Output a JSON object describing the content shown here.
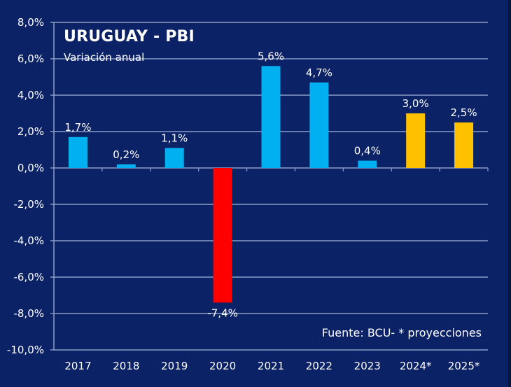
{
  "chart_data": {
    "type": "bar",
    "title": "URUGUAY - PBI",
    "subtitle": "Variación anual",
    "xlabel": "",
    "ylabel": "",
    "categories": [
      "2017",
      "2018",
      "2019",
      "2020",
      "2021",
      "2022",
      "2023",
      "2024*",
      "2025*"
    ],
    "values": [
      1.7,
      0.2,
      1.1,
      -7.4,
      5.6,
      4.7,
      0.4,
      3.0,
      2.5
    ],
    "data_labels": [
      "1,7%",
      "0,2%",
      "1,1%",
      "-7,4%",
      "5,6%",
      "4,7%",
      "0,4%",
      "3,0%",
      "2,5%"
    ],
    "bar_kinds": [
      "actual",
      "actual",
      "actual",
      "negative",
      "actual",
      "actual",
      "actual",
      "projection",
      "projection"
    ],
    "colors": {
      "actual": "#00b0f0",
      "negative": "#ff0000",
      "projection": "#ffc000",
      "background": "#0b2266",
      "grid": "#8a9cc8",
      "text": "#ffffff"
    },
    "ylim": [
      -10,
      8
    ],
    "yticks": [
      8,
      6,
      4,
      2,
      0,
      -2,
      -4,
      -6,
      -8,
      -10
    ],
    "ytick_labels": [
      "8,0%",
      "6,0%",
      "4,0%",
      "2,0%",
      "0,0%",
      "-2,0%",
      "-4,0%",
      "-6,0%",
      "-8,0%",
      "-10,0%"
    ],
    "grid": true,
    "legend": "none",
    "annotation": "Fuente: BCU- * proyecciones"
  }
}
